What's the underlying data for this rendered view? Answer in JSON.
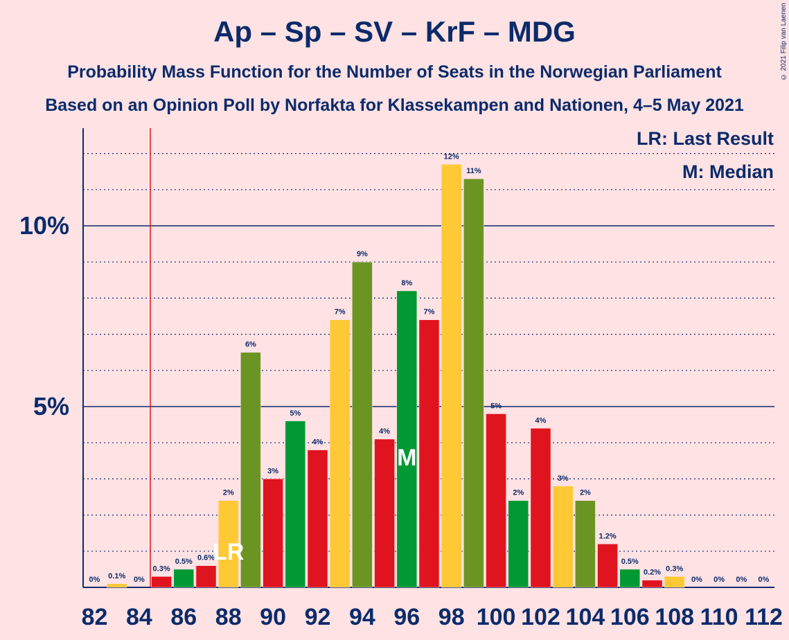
{
  "title": "Ap – Sp – SV – KrF – MDG",
  "subtitle": "Probability Mass Function for the Number of Seats in the Norwegian Parliament",
  "subtitle2": "Based on an Opinion Poll by Norfakta for Klassekampen and Nationen, 4–5 May 2021",
  "copyright": "© 2021 Filip van Laenen",
  "legend": {
    "lr": "LR: Last Result",
    "m": "M: Median"
  },
  "colors": {
    "background": "#FFE2E4",
    "text": "#0B2B6A",
    "red": "#E0141E",
    "green": "#009933",
    "olive": "#6B9523",
    "yellow": "#FFC835",
    "last_result_line": "#E0141E"
  },
  "chart_data": {
    "type": "bar",
    "xlabel": "",
    "ylabel": "",
    "ylim": [
      0,
      12.7
    ],
    "y_ticks": [
      {
        "value": 5,
        "label": "5%"
      },
      {
        "value": 10,
        "label": "10%"
      }
    ],
    "x_ticks": [
      82,
      84,
      86,
      88,
      90,
      92,
      94,
      96,
      98,
      100,
      102,
      104,
      106,
      108,
      110,
      112
    ],
    "grid": "dotted every 1%, solid at 5% and 10%",
    "last_result": 84.5,
    "last_result_label": "LR",
    "last_result_bar": 88,
    "median": 96,
    "median_label": "M",
    "bars": [
      {
        "seats": 82,
        "value": 0,
        "label": "0%",
        "color": "red"
      },
      {
        "seats": 83,
        "value": 0.1,
        "label": "0.1%",
        "color": "yellow"
      },
      {
        "seats": 84,
        "value": 0,
        "label": "0%",
        "color": "red"
      },
      {
        "seats": 85,
        "value": 0.3,
        "label": "0.3%",
        "color": "red"
      },
      {
        "seats": 86,
        "value": 0.5,
        "label": "0.5%",
        "color": "green"
      },
      {
        "seats": 87,
        "value": 0.6,
        "label": "0.6%",
        "color": "red"
      },
      {
        "seats": 88,
        "value": 2.4,
        "label": "2%",
        "color": "yellow"
      },
      {
        "seats": 89,
        "value": 6.5,
        "label": "6%",
        "color": "olive"
      },
      {
        "seats": 90,
        "value": 3.0,
        "label": "3%",
        "color": "red"
      },
      {
        "seats": 91,
        "value": 4.6,
        "label": "5%",
        "color": "green"
      },
      {
        "seats": 92,
        "value": 3.8,
        "label": "4%",
        "color": "red"
      },
      {
        "seats": 93,
        "value": 7.4,
        "label": "7%",
        "color": "yellow"
      },
      {
        "seats": 94,
        "value": 9.0,
        "label": "9%",
        "color": "olive"
      },
      {
        "seats": 95,
        "value": 4.1,
        "label": "4%",
        "color": "red"
      },
      {
        "seats": 96,
        "value": 8.2,
        "label": "8%",
        "color": "green"
      },
      {
        "seats": 97,
        "value": 7.4,
        "label": "7%",
        "color": "red"
      },
      {
        "seats": 98,
        "value": 11.7,
        "label": "12%",
        "color": "yellow"
      },
      {
        "seats": 99,
        "value": 11.3,
        "label": "11%",
        "color": "olive"
      },
      {
        "seats": 100,
        "value": 4.8,
        "label": "5%",
        "color": "red"
      },
      {
        "seats": 101,
        "value": 2.4,
        "label": "2%",
        "color": "green"
      },
      {
        "seats": 102,
        "value": 4.4,
        "label": "4%",
        "color": "red"
      },
      {
        "seats": 103,
        "value": 2.8,
        "label": "3%",
        "color": "yellow"
      },
      {
        "seats": 104,
        "value": 2.4,
        "label": "2%",
        "color": "olive"
      },
      {
        "seats": 105,
        "value": 1.2,
        "label": "1.2%",
        "color": "red"
      },
      {
        "seats": 106,
        "value": 0.5,
        "label": "0.5%",
        "color": "green"
      },
      {
        "seats": 107,
        "value": 0.2,
        "label": "0.2%",
        "color": "red"
      },
      {
        "seats": 108,
        "value": 0.3,
        "label": "0.3%",
        "color": "yellow"
      },
      {
        "seats": 109,
        "value": 0,
        "label": "0%",
        "color": "olive"
      },
      {
        "seats": 110,
        "value": 0,
        "label": "0%",
        "color": "red"
      },
      {
        "seats": 111,
        "value": 0,
        "label": "0%",
        "color": "green"
      },
      {
        "seats": 112,
        "value": 0,
        "label": "0%",
        "color": "red"
      }
    ]
  }
}
